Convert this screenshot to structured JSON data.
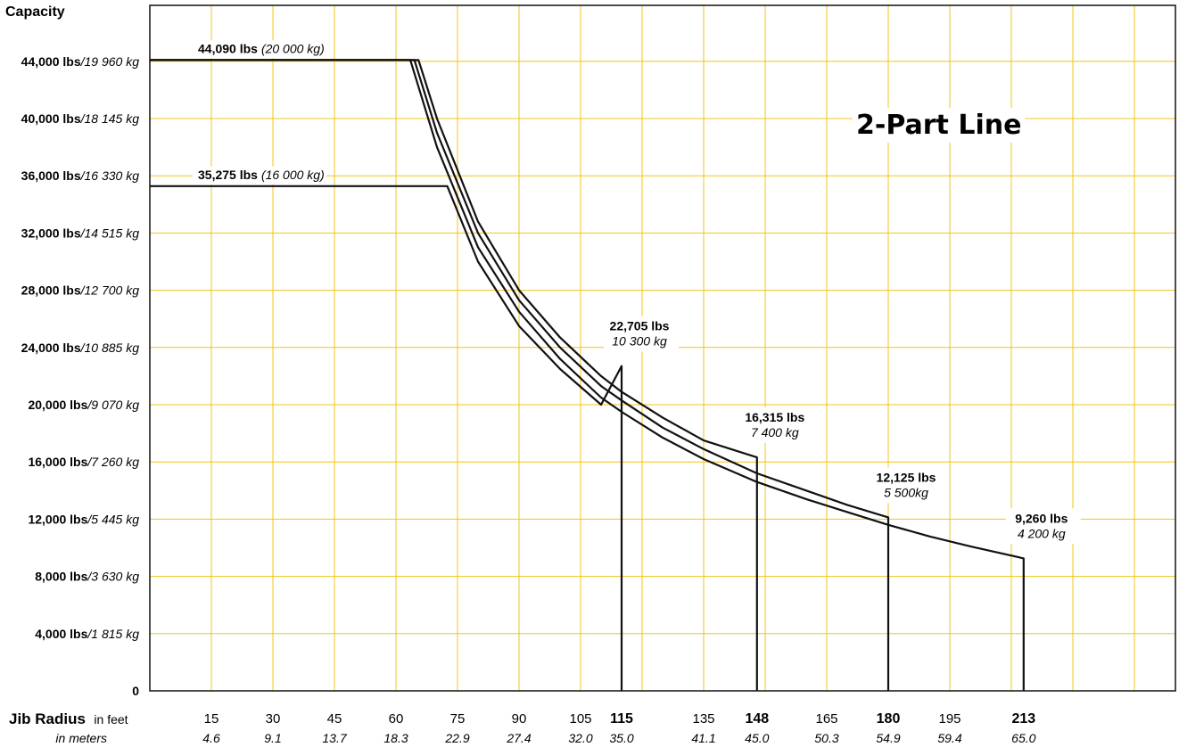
{
  "chart_data": {
    "type": "line",
    "title": "2-Part Line",
    "ylabel": "Capacity",
    "xlabel_main": "Jib Radius",
    "xlabel_feet": "in feet",
    "xlabel_meters": "in meters",
    "ylim_lbs": [
      0,
      48000
    ],
    "xlim_ft": [
      0,
      250
    ],
    "grid": true,
    "grid_color": "#f0c419",
    "line_color": "#111111",
    "y_ticks": [
      {
        "lbs": "0",
        "kg": "",
        "value": 0
      },
      {
        "lbs": "4,000 lbs",
        "kg": "/1 815 kg",
        "value": 4000
      },
      {
        "lbs": "8,000 lbs",
        "kg": "/3 630 kg",
        "value": 8000
      },
      {
        "lbs": "12,000 lbs",
        "kg": "/5 445 kg",
        "value": 12000
      },
      {
        "lbs": "16,000 lbs",
        "kg": "/7 260 kg",
        "value": 16000
      },
      {
        "lbs": "20,000 lbs",
        "kg": "/9 070 kg",
        "value": 20000
      },
      {
        "lbs": "24,000 lbs",
        "kg": "/10 885 kg",
        "value": 24000
      },
      {
        "lbs": "28,000 lbs",
        "kg": "/12 700 kg",
        "value": 28000
      },
      {
        "lbs": "32,000 lbs",
        "kg": "/14 515 kg",
        "value": 32000
      },
      {
        "lbs": "36,000 lbs",
        "kg": "/16 330 kg",
        "value": 36000
      },
      {
        "lbs": "40,000 lbs",
        "kg": "/18 145 kg",
        "value": 40000
      },
      {
        "lbs": "44,000 lbs",
        "kg": "/19 960 kg",
        "value": 44000
      }
    ],
    "x_ticks": [
      {
        "ft": "15",
        "m": "4.6",
        "value": 15,
        "bold": false
      },
      {
        "ft": "30",
        "m": "9.1",
        "value": 30,
        "bold": false
      },
      {
        "ft": "45",
        "m": "13.7",
        "value": 45,
        "bold": false
      },
      {
        "ft": "60",
        "m": "18.3",
        "value": 60,
        "bold": false
      },
      {
        "ft": "75",
        "m": "22.9",
        "value": 75,
        "bold": false
      },
      {
        "ft": "90",
        "m": "27.4",
        "value": 90,
        "bold": false
      },
      {
        "ft": "105",
        "m": "32.0",
        "value": 105,
        "bold": false
      },
      {
        "ft": "115",
        "m": "35.0",
        "value": 115,
        "bold": true
      },
      {
        "ft": "135",
        "m": "41.1",
        "value": 135,
        "bold": false
      },
      {
        "ft": "148",
        "m": "45.0",
        "value": 148,
        "bold": true
      },
      {
        "ft": "165",
        "m": "50.3",
        "value": 165,
        "bold": false
      },
      {
        "ft": "180",
        "m": "54.9",
        "value": 180,
        "bold": true
      },
      {
        "ft": "195",
        "m": "59.4",
        "value": 195,
        "bold": false
      },
      {
        "ft": "213",
        "m": "65.0",
        "value": 213,
        "bold": true
      }
    ],
    "series": [
      {
        "points": [
          [
            0,
            44090
          ],
          [
            63.5,
            44090
          ],
          [
            70,
            38000
          ],
          [
            80,
            31000
          ],
          [
            90,
            26500
          ],
          [
            100,
            23200
          ],
          [
            110,
            20500
          ],
          [
            115,
            19500
          ],
          [
            125,
            17700
          ],
          [
            135,
            16200
          ],
          [
            148,
            14600
          ],
          [
            160,
            13400
          ],
          [
            170,
            12500
          ],
          [
            180,
            11600
          ],
          [
            190,
            10800
          ],
          [
            200,
            10100
          ],
          [
            213,
            9260
          ],
          [
            213,
            0
          ]
        ]
      },
      {
        "points": [
          [
            0,
            44090
          ],
          [
            64.5,
            44090
          ],
          [
            70,
            39000
          ],
          [
            80,
            32000
          ],
          [
            90,
            27300
          ],
          [
            100,
            24000
          ],
          [
            110,
            21300
          ],
          [
            115,
            20300
          ],
          [
            125,
            18400
          ],
          [
            135,
            16900
          ],
          [
            148,
            15200
          ],
          [
            160,
            14000
          ],
          [
            170,
            13000
          ],
          [
            180,
            12125
          ],
          [
            180,
            0
          ]
        ]
      },
      {
        "points": [
          [
            0,
            44090
          ],
          [
            65.5,
            44090
          ],
          [
            70,
            40000
          ],
          [
            80,
            32800
          ],
          [
            90,
            28000
          ],
          [
            100,
            24700
          ],
          [
            110,
            22000
          ],
          [
            115,
            20900
          ],
          [
            125,
            19100
          ],
          [
            135,
            17500
          ],
          [
            148,
            16315
          ],
          [
            148,
            0
          ]
        ]
      },
      {
        "points": [
          [
            0,
            35275
          ],
          [
            72.5,
            35275
          ],
          [
            80,
            30000
          ],
          [
            90,
            25500
          ],
          [
            100,
            22500
          ],
          [
            110,
            20000
          ],
          [
            115,
            22705
          ],
          [
            115,
            0
          ]
        ]
      }
    ],
    "annotations": [
      {
        "lbs": "44,090 lbs",
        "kg": "(20 000 kg)",
        "x": 0,
        "y": 44090,
        "layout": "inline"
      },
      {
        "lbs": "35,275 lbs",
        "kg": "(16 000 kg)",
        "x": 0,
        "y": 35275,
        "layout": "inline"
      },
      {
        "lbs": "22,705 lbs",
        "kg": "10 300 kg",
        "x": 115,
        "y": 22705,
        "layout": "stacked"
      },
      {
        "lbs": "16,315 lbs",
        "kg": "7 400 kg",
        "x": 148,
        "y": 16315,
        "layout": "stacked"
      },
      {
        "lbs": "12,125 lbs",
        "kg": "5 500kg",
        "x": 180,
        "y": 12125,
        "layout": "stacked"
      },
      {
        "lbs": "9,260 lbs",
        "kg": "4 200 kg",
        "x": 213,
        "y": 9260,
        "layout": "stacked"
      }
    ]
  }
}
